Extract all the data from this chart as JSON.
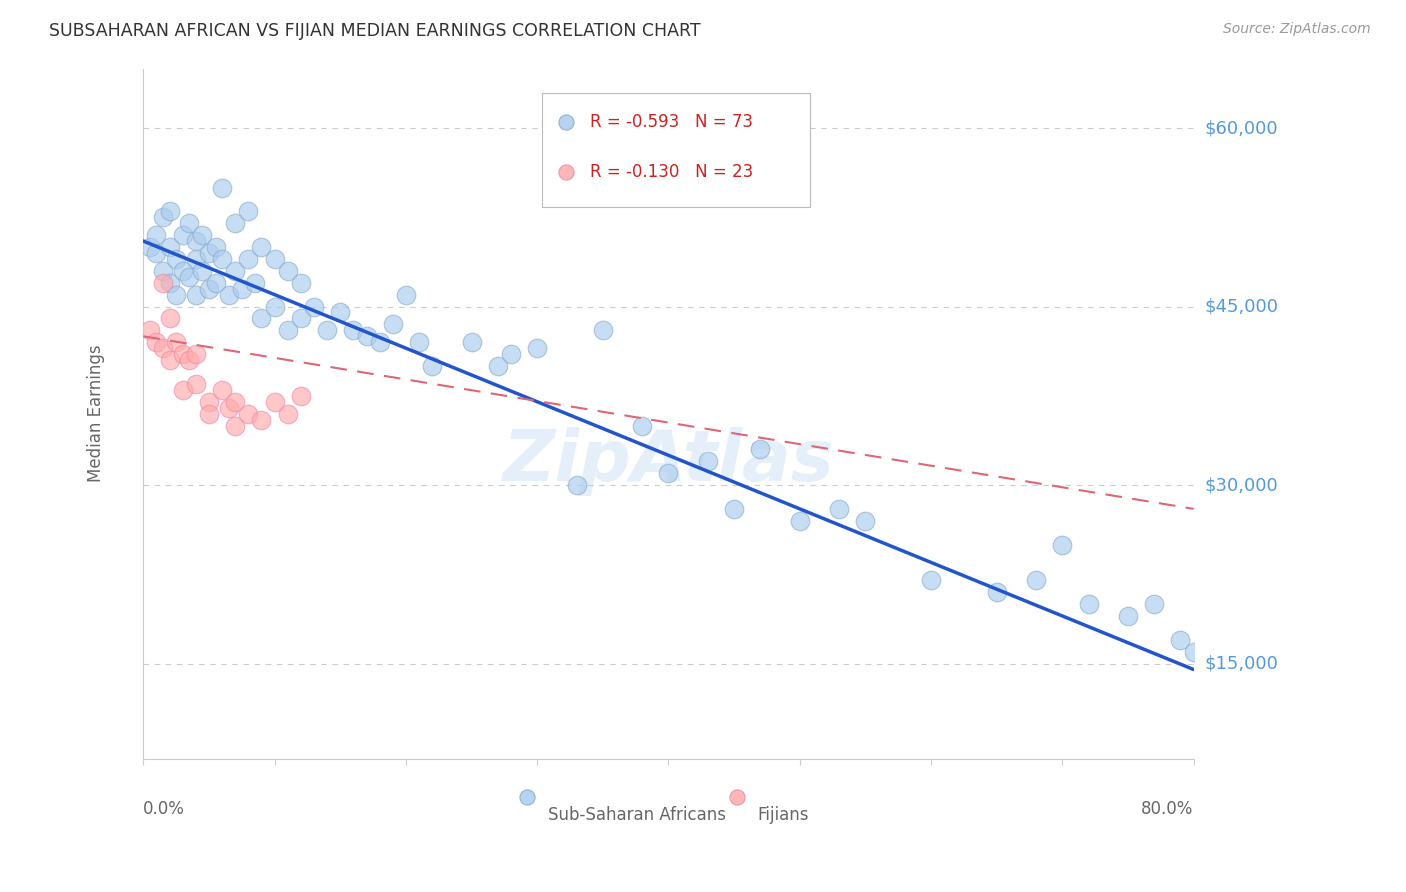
{
  "title": "SUBSAHARAN AFRICAN VS FIJIAN MEDIAN EARNINGS CORRELATION CHART",
  "source": "Source: ZipAtlas.com",
  "ylabel": "Median Earnings",
  "yticks": [
    15000,
    30000,
    45000,
    60000
  ],
  "ytick_labels": [
    "$15,000",
    "$30,000",
    "$45,000",
    "$60,000"
  ],
  "xlim": [
    0.0,
    0.8
  ],
  "ylim": [
    7000,
    65000
  ],
  "legend_blue_label": "R = -0.593   N = 73",
  "legend_pink_label": "R = -0.130   N = 23",
  "blue_face_color": "#AACCEE",
  "blue_edge_color": "#88AACC",
  "pink_face_color": "#FFAAAA",
  "pink_edge_color": "#EE88AA",
  "blue_line_color": "#2255CC",
  "pink_line_color": "#DD6677",
  "background_color": "#FFFFFF",
  "grid_color": "#CCCCCC",
  "axis_label_color": "#666666",
  "ytick_color": "#5599DD",
  "title_color": "#333333",
  "watermark_color": "#AACCEE",
  "blue_scatter_x": [
    0.005,
    0.01,
    0.01,
    0.015,
    0.015,
    0.02,
    0.02,
    0.02,
    0.025,
    0.025,
    0.03,
    0.03,
    0.035,
    0.035,
    0.04,
    0.04,
    0.04,
    0.045,
    0.045,
    0.05,
    0.05,
    0.055,
    0.055,
    0.06,
    0.06,
    0.065,
    0.07,
    0.07,
    0.075,
    0.08,
    0.08,
    0.085,
    0.09,
    0.09,
    0.1,
    0.1,
    0.11,
    0.11,
    0.12,
    0.12,
    0.13,
    0.14,
    0.15,
    0.16,
    0.17,
    0.18,
    0.19,
    0.2,
    0.21,
    0.22,
    0.25,
    0.27,
    0.28,
    0.3,
    0.33,
    0.35,
    0.38,
    0.4,
    0.43,
    0.45,
    0.47,
    0.5,
    0.53,
    0.55,
    0.6,
    0.65,
    0.68,
    0.7,
    0.72,
    0.75,
    0.77,
    0.79,
    0.8
  ],
  "blue_scatter_y": [
    50000,
    49500,
    51000,
    48000,
    52500,
    47000,
    50000,
    53000,
    49000,
    46000,
    51000,
    48000,
    52000,
    47500,
    50500,
    46000,
    49000,
    48000,
    51000,
    49500,
    46500,
    50000,
    47000,
    55000,
    49000,
    46000,
    52000,
    48000,
    46500,
    53000,
    49000,
    47000,
    50000,
    44000,
    49000,
    45000,
    48000,
    43000,
    47000,
    44000,
    45000,
    43000,
    44500,
    43000,
    42500,
    42000,
    43500,
    46000,
    42000,
    40000,
    42000,
    40000,
    41000,
    41500,
    30000,
    43000,
    35000,
    31000,
    32000,
    28000,
    33000,
    27000,
    28000,
    27000,
    22000,
    21000,
    22000,
    25000,
    20000,
    19000,
    20000,
    17000,
    16000
  ],
  "pink_scatter_x": [
    0.005,
    0.01,
    0.015,
    0.015,
    0.02,
    0.02,
    0.025,
    0.03,
    0.03,
    0.035,
    0.04,
    0.04,
    0.05,
    0.05,
    0.06,
    0.065,
    0.07,
    0.07,
    0.08,
    0.09,
    0.1,
    0.11,
    0.12
  ],
  "pink_scatter_y": [
    43000,
    42000,
    47000,
    41500,
    44000,
    40500,
    42000,
    41000,
    38000,
    40500,
    41000,
    38500,
    37000,
    36000,
    38000,
    36500,
    37000,
    35000,
    36000,
    35500,
    37000,
    36000,
    37500
  ],
  "blue_trend_x": [
    0.0,
    0.8
  ],
  "blue_trend_y": [
    50500,
    14500
  ],
  "pink_trend_x": [
    0.0,
    0.8
  ],
  "pink_trend_y": [
    42500,
    28000
  ]
}
